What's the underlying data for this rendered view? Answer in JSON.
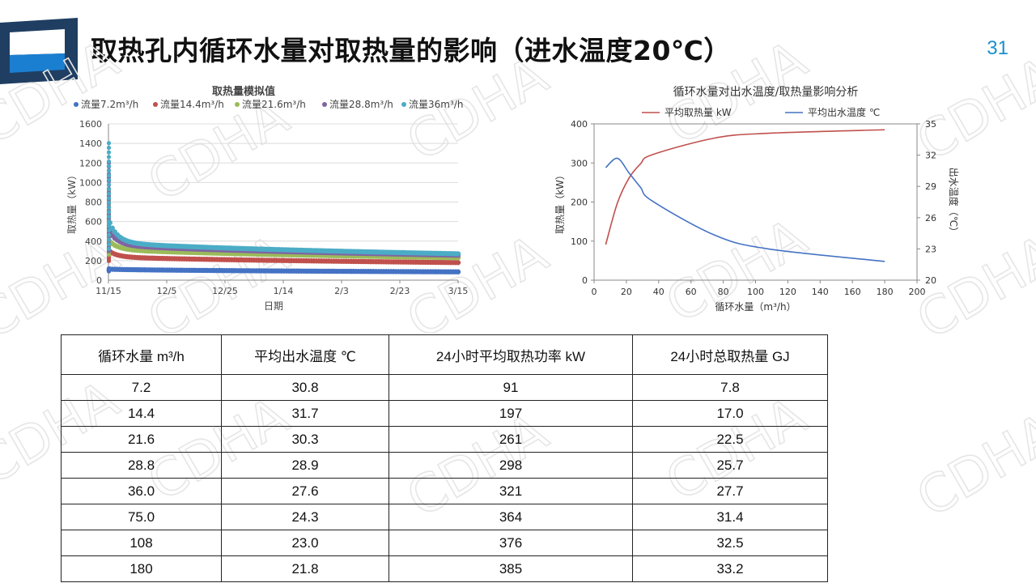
{
  "title": "取热孔内循环水量对取热量的影响（进水温度20℃）",
  "page_number": "31",
  "watermark_text": "CDHA",
  "colors": {
    "accent": "#1a8fd0",
    "logo_dark": "#1f3e62",
    "logo_blue": "#1a7fd0"
  },
  "chart_data": [
    {
      "type": "scatter",
      "title": "取热量模拟值",
      "xlabel": "日期",
      "ylabel": "取热量（kW）",
      "ylim": [
        0,
        1600
      ],
      "yticks": [
        0,
        200,
        400,
        600,
        800,
        1000,
        1200,
        1400,
        1600
      ],
      "xticks": [
        "11/15",
        "12/5",
        "12/25",
        "1/14",
        "2/3",
        "2/23",
        "3/15"
      ],
      "legend_position": "top",
      "grid": "horizontal",
      "series": [
        {
          "name": "流量7.2m³/h",
          "color": "#4472c4",
          "peak": 120,
          "plateau": 91,
          "end": 85
        },
        {
          "name": "流量14.4m³/h",
          "color": "#c0504d",
          "peak": 700,
          "plateau": 197,
          "end": 180
        },
        {
          "name": "流量21.6m³/h",
          "color": "#9bbb59",
          "peak": 950,
          "plateau": 261,
          "end": 230
        },
        {
          "name": "流量28.8m³/h",
          "color": "#8064a2",
          "peak": 1200,
          "plateau": 298,
          "end": 255
        },
        {
          "name": "流量36m³/h",
          "color": "#4bacc6",
          "peak": 1450,
          "plateau": 321,
          "end": 270
        }
      ]
    },
    {
      "type": "line",
      "title": "循环水量对出水温度/取热量影响分析",
      "xlabel": "循环水量（m³/h）",
      "ylabel": "取热量（kW）",
      "y2label": "出水温度（℃）",
      "xlim": [
        0,
        200
      ],
      "xticks": [
        0,
        20,
        40,
        60,
        80,
        100,
        120,
        140,
        160,
        180,
        200
      ],
      "ylim": [
        0,
        400
      ],
      "yticks": [
        0,
        100,
        200,
        300,
        400
      ],
      "y2lim": [
        20,
        35
      ],
      "y2ticks": [
        20,
        23,
        26,
        29,
        32,
        35
      ],
      "legend_position": "top",
      "grid": "none",
      "x": [
        7.2,
        14.4,
        21.6,
        28.8,
        36.0,
        75.0,
        108,
        180
      ],
      "series": [
        {
          "name": "平均取热量 kW",
          "axis": "left",
          "color": "#c0504d",
          "values": [
            91,
            197,
            261,
            298,
            321,
            364,
            376,
            385
          ]
        },
        {
          "name": "平均出水温度 ℃",
          "axis": "right",
          "color": "#4472c4",
          "values": [
            30.8,
            31.7,
            30.3,
            28.9,
            27.6,
            24.3,
            23.0,
            21.8
          ]
        }
      ]
    }
  ],
  "table": {
    "headers": [
      "循环水量 m³/h",
      "平均出水温度 ℃",
      "24小时平均取热功率 kW",
      "24小时总取热量 GJ"
    ],
    "rows": [
      [
        "7.2",
        "30.8",
        "91",
        "7.8"
      ],
      [
        "14.4",
        "31.7",
        "197",
        "17.0"
      ],
      [
        "21.6",
        "30.3",
        "261",
        "22.5"
      ],
      [
        "28.8",
        "28.9",
        "298",
        "25.7"
      ],
      [
        "36.0",
        "27.6",
        "321",
        "27.7"
      ],
      [
        "75.0",
        "24.3",
        "364",
        "31.4"
      ],
      [
        "108",
        "23.0",
        "376",
        "32.5"
      ],
      [
        "180",
        "21.8",
        "385",
        "33.2"
      ]
    ]
  }
}
